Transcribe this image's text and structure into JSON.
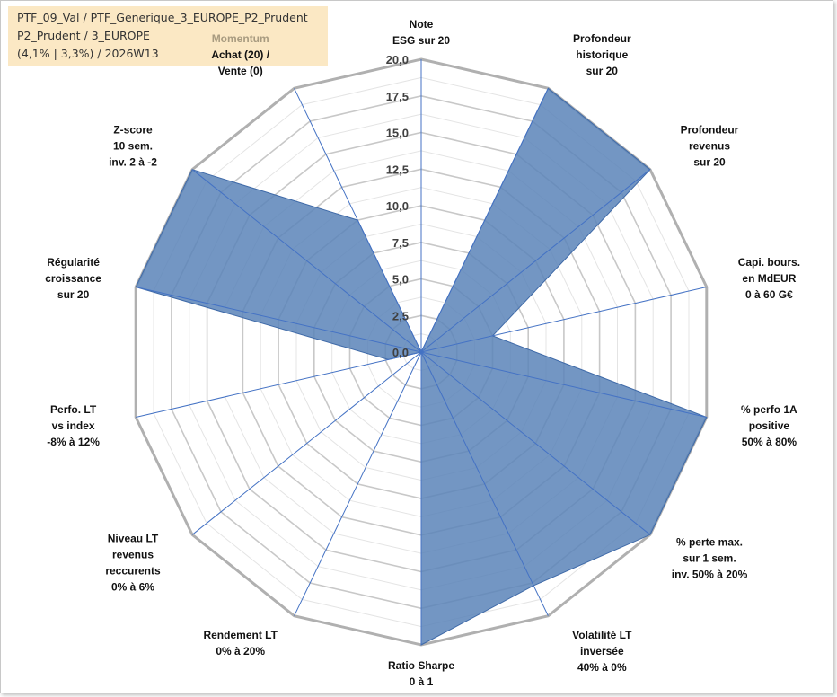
{
  "info_box": {
    "line1": "PTF_09_Val / PTF_Generique_3_EUROPE_P2_Prudent",
    "line2": "P2_Prudent / 3_EUROPE",
    "line3": "(4,1% | 3,3%) / 2026W13"
  },
  "chart_data": {
    "type": "radar",
    "title": "",
    "rmin": 0,
    "rmax": 20,
    "ticks": [
      "0,0",
      "2,5",
      "5,0",
      "7,5",
      "10,0",
      "12,5",
      "15,0",
      "17,5",
      "20,0"
    ],
    "tick_values": [
      0,
      2.5,
      5,
      7.5,
      10,
      12.5,
      15,
      17.5,
      20
    ],
    "fill_color": "#5b84b8",
    "grid_color": "#c0c0c0",
    "spoke_color": "#4472c4",
    "axes": [
      {
        "lines": [
          "Note",
          "ESG sur 20"
        ],
        "value": 0
      },
      {
        "lines": [
          "Profondeur",
          "historique",
          "sur 20"
        ],
        "value": 20
      },
      {
        "lines": [
          "Profondeur",
          "revenus",
          "sur 20"
        ],
        "value": 20
      },
      {
        "lines": [
          "Capi. bours.",
          "en MdEUR",
          "0 à 60 G€"
        ],
        "value": 5
      },
      {
        "lines": [
          "% perfo 1A",
          "positive",
          "50% à 80%"
        ],
        "value": 20
      },
      {
        "lines": [
          "% perte max.",
          "sur 1 sem.",
          "inv. 50% à 20%"
        ],
        "value": 20
      },
      {
        "lines": [
          "Volatilité LT",
          "inversée",
          "40% à 0%"
        ],
        "value": 17.7
      },
      {
        "lines": [
          "Ratio Sharpe",
          "0 à 1"
        ],
        "value": 20
      },
      {
        "lines": [
          "Rendement LT",
          "0% à 20%"
        ],
        "value": 0
      },
      {
        "lines": [
          "Niveau LT",
          "revenus",
          "reccurents",
          "0% à 6%"
        ],
        "value": 0
      },
      {
        "lines": [
          "Perfo. LT",
          "vs index",
          "-8% à 12%"
        ],
        "value": 2.3
      },
      {
        "lines": [
          "Régularité",
          "croissance",
          "sur 20"
        ],
        "value": 20
      },
      {
        "lines": [
          "Z-score",
          "10 sem.",
          "inv. 2 à -2"
        ],
        "value": 20
      },
      {
        "lines": [
          "Momentum",
          "Achat (20) /",
          "Vente (0)"
        ],
        "value": 10,
        "highlight_first_line": true
      }
    ]
  }
}
